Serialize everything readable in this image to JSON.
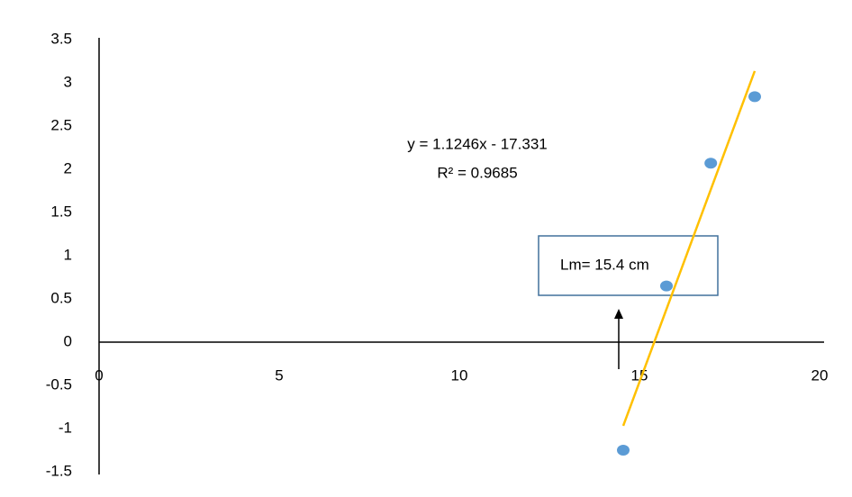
{
  "chart_data": {
    "type": "scatter",
    "x": [
      14.55,
      15.75,
      16.98,
      18.2
    ],
    "values": [
      -1.25,
      0.65,
      2.07,
      2.84
    ],
    "color": "#5b9bd5",
    "xlim": [
      0,
      20
    ],
    "xticks": [
      0,
      5,
      10,
      15,
      20
    ],
    "ylim": [
      -1.5,
      3.5
    ],
    "yticks": [
      -1.5,
      -1,
      -0.5,
      0,
      0.5,
      1,
      1.5,
      2,
      2.5,
      3,
      3.5
    ],
    "trendline": {
      "slope": 1.1246,
      "intercept": -17.331,
      "color": "#ffc000",
      "equation": "y = 1.1246x - 17.331",
      "r2_label": "R² = 0.9685"
    },
    "annotation": "Lm= 15.4 cm"
  }
}
